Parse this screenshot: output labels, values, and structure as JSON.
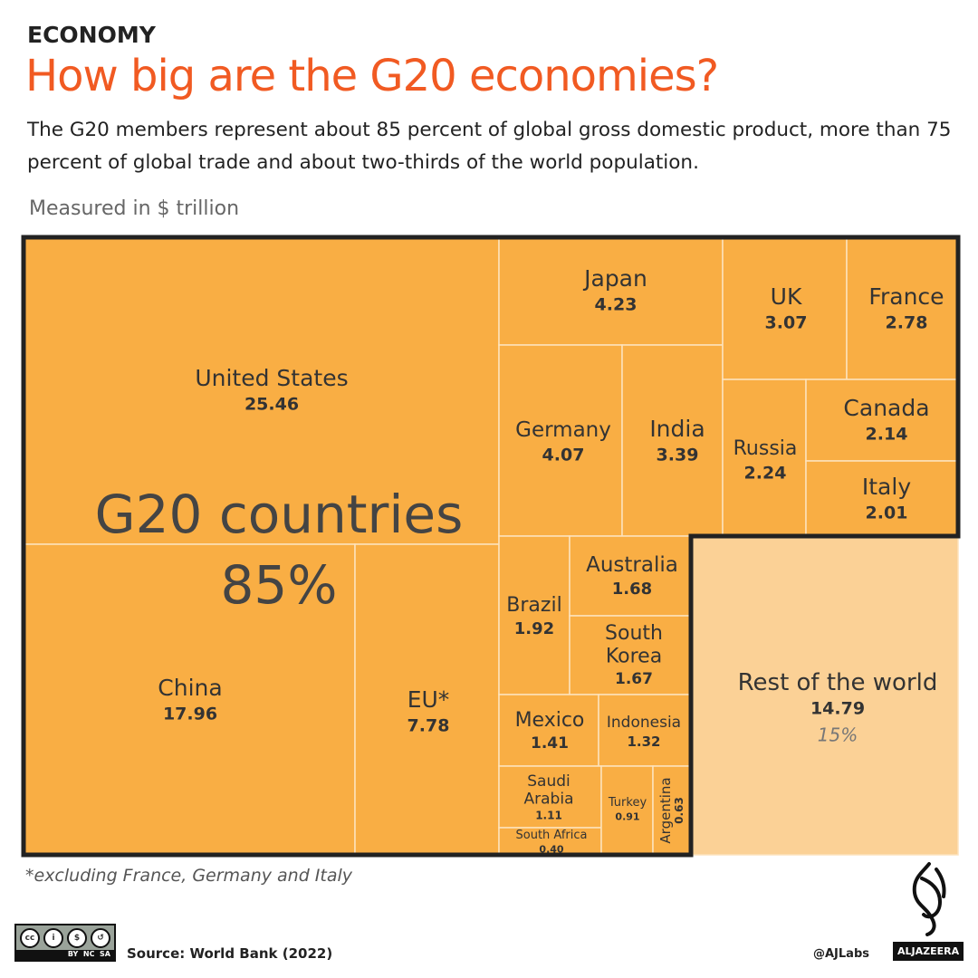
{
  "header": {
    "kicker": "ECONOMY",
    "title": "How big are the G20 economies?",
    "subtitle": "The G20 members represent about 85 percent of global gross domestic product, more than 75 percent of global trade and about two-thirds of the world population.",
    "unit": "Measured in $ trillion"
  },
  "chart_data": {
    "type": "treemap",
    "unit": "$ trillion",
    "group_label": "G20 countries",
    "group_share": "85%",
    "items": [
      {
        "name": "United States",
        "value": "25.46"
      },
      {
        "name": "China",
        "value": "17.96"
      },
      {
        "name": "EU*",
        "value": "7.78"
      },
      {
        "name": "Japan",
        "value": "4.23"
      },
      {
        "name": "Germany",
        "value": "4.07"
      },
      {
        "name": "India",
        "value": "3.39"
      },
      {
        "name": "UK",
        "value": "3.07"
      },
      {
        "name": "France",
        "value": "2.78"
      },
      {
        "name": "Russia",
        "value": "2.24"
      },
      {
        "name": "Canada",
        "value": "2.14"
      },
      {
        "name": "Italy",
        "value": "2.01"
      },
      {
        "name": "Brazil",
        "value": "1.92"
      },
      {
        "name": "Australia",
        "value": "1.68"
      },
      {
        "name": "South Korea",
        "value": "1.67"
      },
      {
        "name": "Mexico",
        "value": "1.41"
      },
      {
        "name": "Indonesia",
        "value": "1.32"
      },
      {
        "name": "Saudi Arabia",
        "value": "1.11"
      },
      {
        "name": "South Africa",
        "value": "0.40"
      },
      {
        "name": "Turkey",
        "value": "0.91"
      },
      {
        "name": "Argentina",
        "value": "0.63"
      },
      {
        "name": "Rest of the world",
        "value": "14.79",
        "share": "15%"
      }
    ],
    "colors": {
      "g20": "#f9ae44",
      "rest": "#fbd196",
      "border": "#222222"
    }
  },
  "footer": {
    "footnote": "*excluding France, Germany and Italy",
    "source": "Source: World Bank (2022)",
    "handle": "@AJLabs",
    "brand": "ALJAZEERA",
    "license": [
      "BY",
      "NC",
      "SA"
    ]
  }
}
